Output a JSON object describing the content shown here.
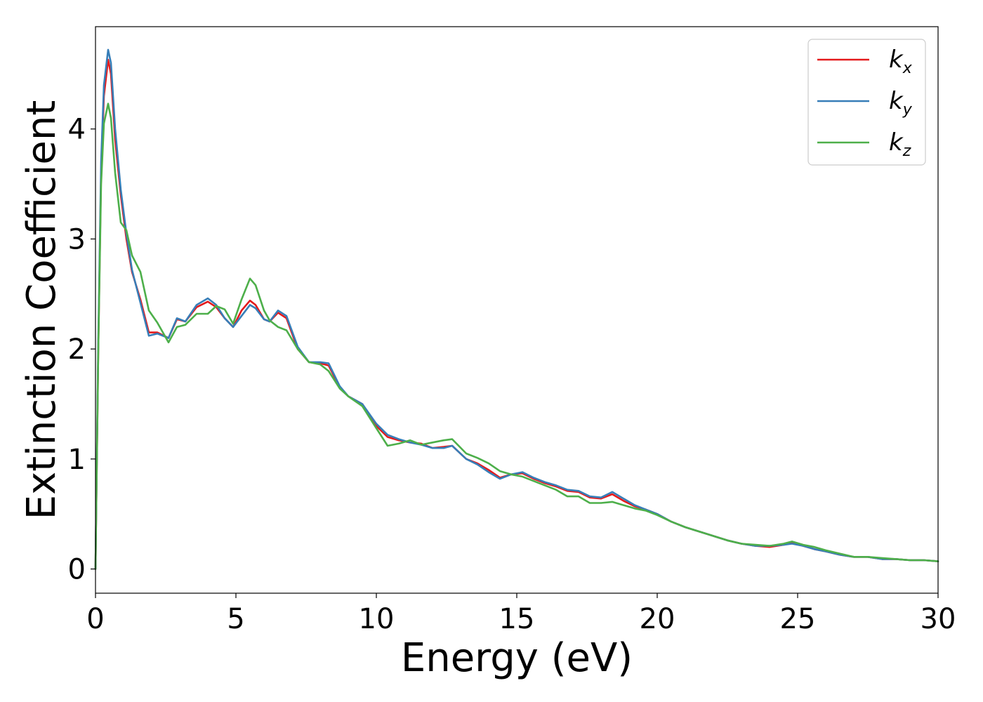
{
  "chart_data": {
    "type": "line",
    "title": "",
    "xlabel": "Energy (eV)",
    "ylabel": "Extinction Coefficient",
    "xlim": [
      0,
      30
    ],
    "ylim": [
      -0.22,
      4.93
    ],
    "xticks": [
      0,
      5,
      10,
      15,
      20,
      25,
      30
    ],
    "xtick_labels": [
      "0",
      "5",
      "10",
      "15",
      "20",
      "25",
      "30"
    ],
    "yticks": [
      0,
      1,
      2,
      3,
      4
    ],
    "ytick_labels": [
      "0",
      "1",
      "2",
      "3",
      "4"
    ],
    "grid": false,
    "legend_position": "top-right",
    "series": [
      {
        "name": "k_x",
        "label_main": "k",
        "label_sub": "x",
        "color": "#e41a1c",
        "points": [
          [
            0,
            0.0
          ],
          [
            0.1,
            2.0
          ],
          [
            0.2,
            3.6
          ],
          [
            0.3,
            4.3
          ],
          [
            0.45,
            4.63
          ],
          [
            0.55,
            4.5
          ],
          [
            0.7,
            3.9
          ],
          [
            0.9,
            3.4
          ],
          [
            1.1,
            3.0
          ],
          [
            1.3,
            2.7
          ],
          [
            1.6,
            2.45
          ],
          [
            1.9,
            2.15
          ],
          [
            2.2,
            2.15
          ],
          [
            2.6,
            2.1
          ],
          [
            2.9,
            2.27
          ],
          [
            3.2,
            2.25
          ],
          [
            3.6,
            2.38
          ],
          [
            4.0,
            2.43
          ],
          [
            4.3,
            2.38
          ],
          [
            4.6,
            2.28
          ],
          [
            4.9,
            2.2
          ],
          [
            5.2,
            2.35
          ],
          [
            5.5,
            2.44
          ],
          [
            5.7,
            2.4
          ],
          [
            6.0,
            2.27
          ],
          [
            6.2,
            2.25
          ],
          [
            6.5,
            2.33
          ],
          [
            6.8,
            2.28
          ],
          [
            7.2,
            2.0
          ],
          [
            7.6,
            1.88
          ],
          [
            8.0,
            1.87
          ],
          [
            8.3,
            1.85
          ],
          [
            8.7,
            1.65
          ],
          [
            9.0,
            1.57
          ],
          [
            9.5,
            1.5
          ],
          [
            10.0,
            1.3
          ],
          [
            10.4,
            1.2
          ],
          [
            10.8,
            1.17
          ],
          [
            11.2,
            1.15
          ],
          [
            11.6,
            1.14
          ],
          [
            12.0,
            1.1
          ],
          [
            12.4,
            1.11
          ],
          [
            12.7,
            1.12
          ],
          [
            13.2,
            1.0
          ],
          [
            13.6,
            0.96
          ],
          [
            14.0,
            0.9
          ],
          [
            14.4,
            0.83
          ],
          [
            14.8,
            0.86
          ],
          [
            15.2,
            0.87
          ],
          [
            15.6,
            0.82
          ],
          [
            16.0,
            0.78
          ],
          [
            16.4,
            0.75
          ],
          [
            16.8,
            0.71
          ],
          [
            17.2,
            0.7
          ],
          [
            17.6,
            0.65
          ],
          [
            18.0,
            0.64
          ],
          [
            18.4,
            0.68
          ],
          [
            18.8,
            0.62
          ],
          [
            19.2,
            0.57
          ],
          [
            19.6,
            0.54
          ],
          [
            20.0,
            0.5
          ],
          [
            20.5,
            0.43
          ],
          [
            21.0,
            0.38
          ],
          [
            21.5,
            0.34
          ],
          [
            22.0,
            0.3
          ],
          [
            22.5,
            0.26
          ],
          [
            23.0,
            0.23
          ],
          [
            23.5,
            0.21
          ],
          [
            24.0,
            0.2
          ],
          [
            24.5,
            0.22
          ],
          [
            24.8,
            0.24
          ],
          [
            25.2,
            0.21
          ],
          [
            25.6,
            0.18
          ],
          [
            26.0,
            0.16
          ],
          [
            26.5,
            0.13
          ],
          [
            27.0,
            0.11
          ],
          [
            27.5,
            0.11
          ],
          [
            28.0,
            0.09
          ],
          [
            28.5,
            0.09
          ],
          [
            29.0,
            0.08
          ],
          [
            29.5,
            0.08
          ],
          [
            30.0,
            0.07
          ]
        ]
      },
      {
        "name": "k_y",
        "label_main": "k",
        "label_sub": "y",
        "color": "#377eb8",
        "points": [
          [
            0,
            0.0
          ],
          [
            0.1,
            2.1
          ],
          [
            0.2,
            3.7
          ],
          [
            0.3,
            4.4
          ],
          [
            0.45,
            4.72
          ],
          [
            0.55,
            4.6
          ],
          [
            0.7,
            4.0
          ],
          [
            0.9,
            3.45
          ],
          [
            1.1,
            3.05
          ],
          [
            1.3,
            2.72
          ],
          [
            1.6,
            2.42
          ],
          [
            1.9,
            2.12
          ],
          [
            2.2,
            2.14
          ],
          [
            2.6,
            2.1
          ],
          [
            2.9,
            2.28
          ],
          [
            3.2,
            2.25
          ],
          [
            3.6,
            2.4
          ],
          [
            4.0,
            2.46
          ],
          [
            4.3,
            2.4
          ],
          [
            4.6,
            2.28
          ],
          [
            4.9,
            2.2
          ],
          [
            5.2,
            2.3
          ],
          [
            5.5,
            2.4
          ],
          [
            5.7,
            2.37
          ],
          [
            6.0,
            2.27
          ],
          [
            6.2,
            2.25
          ],
          [
            6.5,
            2.35
          ],
          [
            6.8,
            2.3
          ],
          [
            7.2,
            2.02
          ],
          [
            7.6,
            1.88
          ],
          [
            8.0,
            1.88
          ],
          [
            8.3,
            1.87
          ],
          [
            8.7,
            1.66
          ],
          [
            9.0,
            1.57
          ],
          [
            9.5,
            1.5
          ],
          [
            10.0,
            1.32
          ],
          [
            10.4,
            1.22
          ],
          [
            10.8,
            1.18
          ],
          [
            11.2,
            1.15
          ],
          [
            11.6,
            1.13
          ],
          [
            12.0,
            1.1
          ],
          [
            12.4,
            1.1
          ],
          [
            12.7,
            1.12
          ],
          [
            13.2,
            1.0
          ],
          [
            13.6,
            0.95
          ],
          [
            14.0,
            0.88
          ],
          [
            14.4,
            0.82
          ],
          [
            14.8,
            0.86
          ],
          [
            15.2,
            0.88
          ],
          [
            15.6,
            0.83
          ],
          [
            16.0,
            0.79
          ],
          [
            16.4,
            0.76
          ],
          [
            16.8,
            0.72
          ],
          [
            17.2,
            0.71
          ],
          [
            17.6,
            0.66
          ],
          [
            18.0,
            0.65
          ],
          [
            18.4,
            0.7
          ],
          [
            18.8,
            0.64
          ],
          [
            19.2,
            0.58
          ],
          [
            19.6,
            0.54
          ],
          [
            20.0,
            0.5
          ],
          [
            20.5,
            0.43
          ],
          [
            21.0,
            0.38
          ],
          [
            21.5,
            0.34
          ],
          [
            22.0,
            0.3
          ],
          [
            22.5,
            0.26
          ],
          [
            23.0,
            0.23
          ],
          [
            23.5,
            0.21
          ],
          [
            24.0,
            0.21
          ],
          [
            24.5,
            0.22
          ],
          [
            24.8,
            0.23
          ],
          [
            25.2,
            0.21
          ],
          [
            25.6,
            0.18
          ],
          [
            26.0,
            0.16
          ],
          [
            26.5,
            0.13
          ],
          [
            27.0,
            0.11
          ],
          [
            27.5,
            0.11
          ],
          [
            28.0,
            0.09
          ],
          [
            28.5,
            0.09
          ],
          [
            29.0,
            0.08
          ],
          [
            29.5,
            0.08
          ],
          [
            30.0,
            0.07
          ]
        ]
      },
      {
        "name": "k_z",
        "label_main": "k",
        "label_sub": "z",
        "color": "#4daf4a",
        "points": [
          [
            0,
            0.0
          ],
          [
            0.1,
            2.0
          ],
          [
            0.2,
            3.5
          ],
          [
            0.3,
            4.05
          ],
          [
            0.45,
            4.23
          ],
          [
            0.55,
            4.1
          ],
          [
            0.7,
            3.6
          ],
          [
            0.9,
            3.15
          ],
          [
            1.1,
            3.08
          ],
          [
            1.3,
            2.85
          ],
          [
            1.6,
            2.7
          ],
          [
            1.9,
            2.35
          ],
          [
            2.2,
            2.24
          ],
          [
            2.6,
            2.06
          ],
          [
            2.9,
            2.2
          ],
          [
            3.2,
            2.22
          ],
          [
            3.6,
            2.32
          ],
          [
            4.0,
            2.32
          ],
          [
            4.3,
            2.39
          ],
          [
            4.6,
            2.36
          ],
          [
            4.9,
            2.23
          ],
          [
            5.2,
            2.45
          ],
          [
            5.5,
            2.64
          ],
          [
            5.7,
            2.58
          ],
          [
            6.0,
            2.35
          ],
          [
            6.2,
            2.26
          ],
          [
            6.5,
            2.2
          ],
          [
            6.8,
            2.17
          ],
          [
            7.2,
            2.0
          ],
          [
            7.6,
            1.88
          ],
          [
            8.0,
            1.86
          ],
          [
            8.3,
            1.8
          ],
          [
            8.7,
            1.64
          ],
          [
            9.0,
            1.57
          ],
          [
            9.5,
            1.48
          ],
          [
            10.0,
            1.28
          ],
          [
            10.4,
            1.12
          ],
          [
            10.8,
            1.14
          ],
          [
            11.2,
            1.17
          ],
          [
            11.6,
            1.13
          ],
          [
            12.0,
            1.15
          ],
          [
            12.4,
            1.17
          ],
          [
            12.7,
            1.18
          ],
          [
            13.2,
            1.05
          ],
          [
            13.6,
            1.01
          ],
          [
            14.0,
            0.96
          ],
          [
            14.4,
            0.89
          ],
          [
            14.8,
            0.86
          ],
          [
            15.2,
            0.84
          ],
          [
            15.6,
            0.8
          ],
          [
            16.0,
            0.76
          ],
          [
            16.4,
            0.72
          ],
          [
            16.8,
            0.66
          ],
          [
            17.2,
            0.66
          ],
          [
            17.6,
            0.6
          ],
          [
            18.0,
            0.6
          ],
          [
            18.4,
            0.61
          ],
          [
            18.8,
            0.58
          ],
          [
            19.2,
            0.55
          ],
          [
            19.6,
            0.53
          ],
          [
            20.0,
            0.49
          ],
          [
            20.5,
            0.43
          ],
          [
            21.0,
            0.38
          ],
          [
            21.5,
            0.34
          ],
          [
            22.0,
            0.3
          ],
          [
            22.5,
            0.26
          ],
          [
            23.0,
            0.23
          ],
          [
            23.5,
            0.22
          ],
          [
            24.0,
            0.21
          ],
          [
            24.5,
            0.23
          ],
          [
            24.8,
            0.25
          ],
          [
            25.2,
            0.22
          ],
          [
            25.6,
            0.2
          ],
          [
            26.0,
            0.17
          ],
          [
            26.5,
            0.14
          ],
          [
            27.0,
            0.11
          ],
          [
            27.5,
            0.11
          ],
          [
            28.0,
            0.1
          ],
          [
            28.5,
            0.09
          ],
          [
            29.0,
            0.08
          ],
          [
            29.5,
            0.08
          ],
          [
            30.0,
            0.07
          ]
        ]
      }
    ]
  }
}
